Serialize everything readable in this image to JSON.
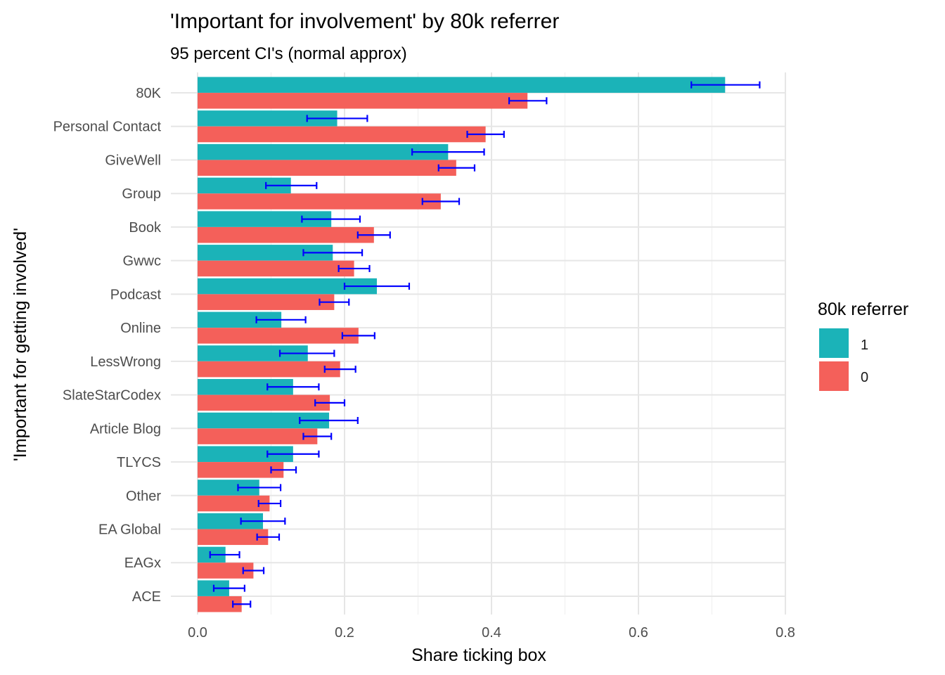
{
  "chart_data": {
    "type": "bar",
    "orientation": "horizontal",
    "title": "'Important for involvement' by 80k referrer",
    "subtitle": "95 percent CI's (normal approx)",
    "xlabel": "Share ticking box",
    "ylabel": "'Important for getting involved'",
    "xlim": [
      0,
      0.8
    ],
    "x_ticks": [
      "0.0",
      "0.2",
      "0.4",
      "0.6",
      "0.8"
    ],
    "x_tick_values": [
      0,
      0.2,
      0.4,
      0.6,
      0.8
    ],
    "grid": true,
    "legend": {
      "title": "80k referrer",
      "position": "right"
    },
    "categories": [
      "80K",
      "Personal Contact",
      "GiveWell",
      "Group",
      "Book",
      "Gwwc",
      "Podcast",
      "Online",
      "LessWrong",
      "SlateStarCodex",
      "Article Blog",
      "TLYCS",
      "Other",
      "EA Global",
      "EAGx",
      "ACE"
    ],
    "series": [
      {
        "name": "1",
        "color": "#1bb3b8",
        "values": [
          0.718,
          0.19,
          0.341,
          0.127,
          0.182,
          0.184,
          0.244,
          0.114,
          0.15,
          0.13,
          0.179,
          0.13,
          0.084,
          0.089,
          0.038,
          0.043
        ],
        "ci_low": [
          0.672,
          0.149,
          0.292,
          0.093,
          0.142,
          0.144,
          0.2,
          0.08,
          0.112,
          0.095,
          0.139,
          0.095,
          0.055,
          0.059,
          0.017,
          0.022
        ],
        "ci_high": [
          0.765,
          0.231,
          0.39,
          0.162,
          0.221,
          0.224,
          0.288,
          0.147,
          0.186,
          0.165,
          0.218,
          0.165,
          0.113,
          0.119,
          0.057,
          0.064
        ]
      },
      {
        "name": "0",
        "color": "#f4605a",
        "values": [
          0.449,
          0.392,
          0.352,
          0.331,
          0.24,
          0.213,
          0.186,
          0.219,
          0.194,
          0.18,
          0.163,
          0.117,
          0.098,
          0.096,
          0.076,
          0.06
        ],
        "ci_low": [
          0.424,
          0.367,
          0.328,
          0.306,
          0.218,
          0.192,
          0.166,
          0.197,
          0.173,
          0.16,
          0.144,
          0.1,
          0.083,
          0.081,
          0.062,
          0.048
        ],
        "ci_high": [
          0.475,
          0.417,
          0.377,
          0.356,
          0.262,
          0.234,
          0.206,
          0.241,
          0.215,
          0.2,
          0.182,
          0.134,
          0.113,
          0.111,
          0.09,
          0.072
        ]
      }
    ],
    "error_bar_color": "#0000ff"
  }
}
